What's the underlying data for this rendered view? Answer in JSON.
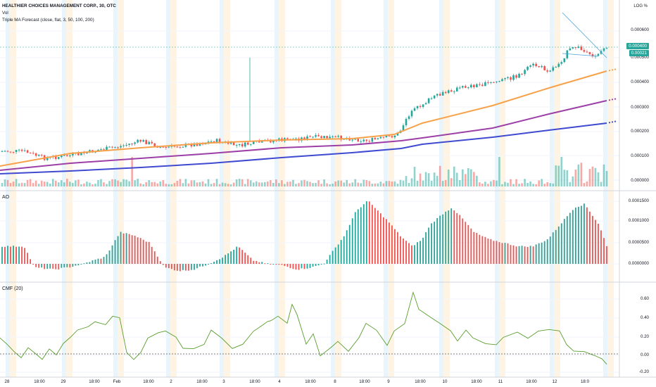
{
  "header": {
    "symbol_line": "HEALTHIER CHOICES MANAGEMENT CORP., 30, OTC",
    "vol_label": "Vol",
    "indicator_label": "Triple MA Forecast (close, flat, 3, 50, 100, 200)",
    "log_button": "LOG",
    "percent_button": "%"
  },
  "price_scale": {
    "ticks": [
      "0.000600",
      "0.000500",
      "0.000400",
      "0.000300",
      "0.000200",
      "0.000100",
      "0.000000"
    ],
    "last_price": "0.000400",
    "last_price_tag2": "0.00021"
  },
  "ao_pane": {
    "label": "AO",
    "ticks": [
      "0.0001500",
      "0.0001000",
      "0.0000500",
      "0.0000000"
    ]
  },
  "cmf_pane": {
    "label": "CMF (20)",
    "ticks": [
      "0.60",
      "0.40",
      "0.20",
      "0.00",
      "-0.20"
    ]
  },
  "time_axis": {
    "labels": [
      "28",
      "18:00",
      "29",
      "18:00",
      "Feb",
      "18:00",
      "2",
      "18:00",
      "3",
      "18:00",
      "4",
      "18:00",
      "8",
      "18:00",
      "9",
      "18:00",
      "10",
      "18:00",
      "11",
      "18:00",
      "12",
      "18:0"
    ]
  },
  "colors": {
    "up": "#26a69a",
    "down": "#ef5350",
    "ma1": "#f7a24b",
    "ma2": "#9c3fa6",
    "ma3": "#3f4ad1",
    "cmf": "#5b9e2e",
    "session_light_blue": "#e3f2fd",
    "session_light_orange": "#fff3e0",
    "price_tag": "#26a69a"
  },
  "chart_data": {
    "type": "candlestick",
    "series": [
      {
        "name": "Triple MA Forecast (close, flat, 3, 50, 100, 200)"
      }
    ]
  }
}
